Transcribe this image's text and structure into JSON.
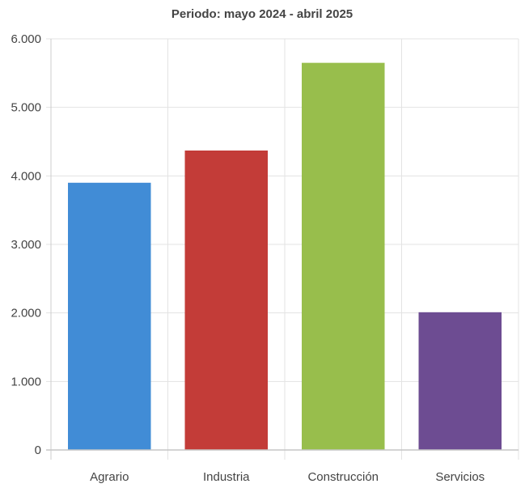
{
  "chart_data": {
    "type": "bar",
    "title": "Periodo: mayo 2024 - abril 2025",
    "xlabel": "",
    "ylabel": "",
    "categories": [
      "Agrario",
      "Industria",
      "Construcción",
      "Servicios"
    ],
    "values": [
      3900,
      4370,
      5650,
      2010
    ],
    "colors": [
      "#418CD6",
      "#C33C38",
      "#98BE4C",
      "#6D4C92"
    ],
    "ylim": [
      0,
      6000
    ],
    "yticks": [
      0,
      1000,
      2000,
      3000,
      4000,
      5000,
      6000
    ],
    "ytick_labels": [
      "0",
      "1.000",
      "2.000",
      "3.000",
      "4.000",
      "5.000",
      "6.000"
    ],
    "grid": true,
    "legend": "none"
  }
}
